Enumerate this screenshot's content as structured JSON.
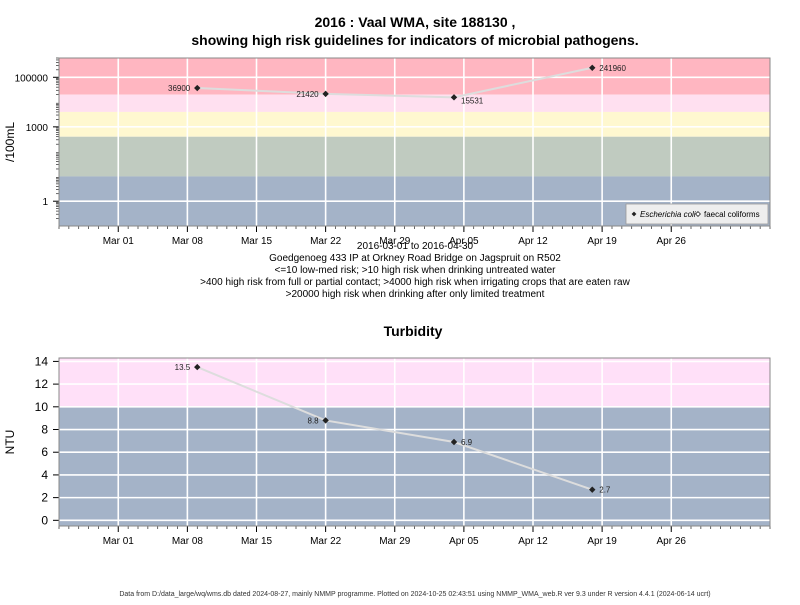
{
  "title_line1": "2016 : Vaal WMA, site 188130 ,",
  "title_line2": "showing high risk guidelines for indicators of microbial pathogens.",
  "caption_lines": [
    "2016-03-01 to 2016-04-30",
    "Goedgenoeg 433 IP at Orkney Road Bridge on Jagspruit on R502",
    "<=10 low-med risk; >10 high risk when drinking untreated water",
    ">400 high risk from full or partial contact; >4000 high risk when irrigating crops that are eaten raw",
    ">20000 high risk when drinking after only limited treatment"
  ],
  "footer": "Data from D:/data_large/wq/wms.db dated 2024-08-27, mainly NMMP programme. Plotted on 2024-10-25 02:43:51 using NMMP_WMA_web.R ver 9.3 under R version 4.4.1 (2024-06-14 ucrt)",
  "colors": {
    "grid": "#ffffff",
    "line": "#dddddd",
    "point": "#222222",
    "high_risk": "#ffb6c1",
    "light_pink": "#ffe0f0",
    "cream": "#fff8d0",
    "sage": "#c0cbc0",
    "slate": "#a4b3c8",
    "turbidity_high": "#ffe0f8"
  },
  "chart_data": [
    {
      "type": "scatter",
      "scale": "log10",
      "title": "",
      "xlabel": "",
      "ylabel": "/100mL",
      "xlim": [
        "2016-02-24",
        "2016-05-06"
      ],
      "ylim": [
        0.1,
        600000
      ],
      "x_ticks": [
        {
          "date": "2016-03-01",
          "label": "Mar 01"
        },
        {
          "date": "2016-03-08",
          "label": "Mar 08"
        },
        {
          "date": "2016-03-15",
          "label": "Mar 15"
        },
        {
          "date": "2016-03-22",
          "label": "Mar 22"
        },
        {
          "date": "2016-03-29",
          "label": "Mar 29"
        },
        {
          "date": "2016-04-05",
          "label": "Apr 05"
        },
        {
          "date": "2016-04-12",
          "label": "Apr 12"
        },
        {
          "date": "2016-04-19",
          "label": "Apr 19"
        },
        {
          "date": "2016-04-26",
          "label": "Apr 26"
        }
      ],
      "y_ticks": [
        {
          "value": 1,
          "label": "1"
        },
        {
          "value": 1000,
          "label": "1000"
        },
        {
          "value": 100000,
          "label": "100000"
        }
      ],
      "bands": [
        {
          "from": 20000,
          "to": 600000,
          "color_key": "high_risk"
        },
        {
          "from": 4000,
          "to": 20000,
          "color_key": "light_pink"
        },
        {
          "from": 400,
          "to": 4000,
          "color_key": "cream"
        },
        {
          "from": 10,
          "to": 400,
          "color_key": "sage"
        },
        {
          "from": 0.1,
          "to": 10,
          "color_key": "slate"
        }
      ],
      "series": [
        {
          "name": "Escherichia coli",
          "points": [
            {
              "x": "2016-03-09",
              "y": 36900,
              "label": "36900",
              "label_side": "left"
            },
            {
              "x": "2016-03-22",
              "y": 21420,
              "label": "21420",
              "label_side": "left"
            },
            {
              "x": "2016-04-04",
              "y": 15531,
              "label": "15531",
              "label_side": "right-below"
            },
            {
              "x": "2016-04-18",
              "y": 241960,
              "label": "241960",
              "label_side": "right"
            }
          ]
        }
      ],
      "legend": {
        "position": "bottom-right",
        "entries": [
          {
            "label": "Escherichia coli",
            "marker": "filled-diamond"
          },
          {
            "label": "faecal coliforms",
            "marker": "open-diamond"
          }
        ]
      },
      "grid": true
    },
    {
      "type": "scatter",
      "title": "Turbidity",
      "xlabel": "",
      "ylabel": "NTU",
      "xlim": [
        "2016-02-24",
        "2016-05-06"
      ],
      "ylim": [
        -0.5,
        14.3
      ],
      "x_ticks": [
        {
          "date": "2016-03-01",
          "label": "Mar 01"
        },
        {
          "date": "2016-03-08",
          "label": "Mar 08"
        },
        {
          "date": "2016-03-15",
          "label": "Mar 15"
        },
        {
          "date": "2016-03-22",
          "label": "Mar 22"
        },
        {
          "date": "2016-03-29",
          "label": "Mar 29"
        },
        {
          "date": "2016-04-05",
          "label": "Apr 05"
        },
        {
          "date": "2016-04-12",
          "label": "Apr 12"
        },
        {
          "date": "2016-04-19",
          "label": "Apr 19"
        },
        {
          "date": "2016-04-26",
          "label": "Apr 26"
        }
      ],
      "y_ticks": [
        {
          "value": 0,
          "label": "0"
        },
        {
          "value": 2,
          "label": "2"
        },
        {
          "value": 4,
          "label": "4"
        },
        {
          "value": 6,
          "label": "6"
        },
        {
          "value": 8,
          "label": "8"
        },
        {
          "value": 10,
          "label": "10"
        },
        {
          "value": 12,
          "label": "12"
        },
        {
          "value": 14,
          "label": "14"
        }
      ],
      "bands": [
        {
          "from": 10,
          "to": 14.3,
          "color_key": "turbidity_high"
        },
        {
          "from": -0.5,
          "to": 10,
          "color_key": "slate"
        }
      ],
      "series": [
        {
          "points": [
            {
              "x": "2016-03-09",
              "y": 13.5,
              "label": "13.5",
              "label_side": "left"
            },
            {
              "x": "2016-03-22",
              "y": 8.8,
              "label": "8.8",
              "label_side": "left"
            },
            {
              "x": "2016-04-04",
              "y": 6.9,
              "label": "6.9",
              "label_side": "right"
            },
            {
              "x": "2016-04-18",
              "y": 2.7,
              "label": "2.7",
              "label_side": "right"
            }
          ]
        }
      ],
      "grid": true
    }
  ]
}
